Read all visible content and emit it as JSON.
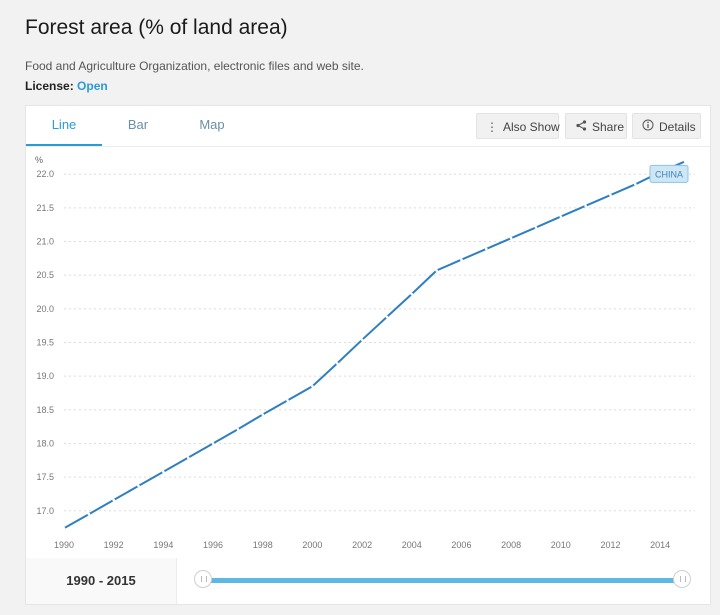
{
  "header": {
    "title": "Forest area (% of land area)",
    "source": "Food and Agriculture Organization, electronic files and web site.",
    "license_label": "License:",
    "license_value": "Open"
  },
  "tabs": [
    {
      "label": "Line",
      "active": true
    },
    {
      "label": "Bar",
      "active": false
    },
    {
      "label": "Map",
      "active": false
    }
  ],
  "toolbar": {
    "also_show": "Also Show",
    "share": "Share",
    "details": "Details"
  },
  "footer": {
    "range_label": "1990 - 2015",
    "range_start": 1990,
    "range_end": 2015
  },
  "colors": {
    "accent": "#2b9bd6",
    "line": "#2f7fc1",
    "series_label_bg": "#cfe6f5"
  },
  "chart_data": {
    "type": "line",
    "ylabel": "%",
    "xlabel": "",
    "xlim": [
      1990,
      2015
    ],
    "ylim": [
      16.7,
      22.3
    ],
    "x_ticks": [
      1990,
      1992,
      1994,
      1996,
      1998,
      2000,
      2002,
      2004,
      2006,
      2008,
      2010,
      2012,
      2014
    ],
    "x_tick_labels": [
      "1990",
      "1992",
      "1994",
      "1996",
      "1998",
      "2000",
      "2002",
      "2004",
      "2006",
      "2008",
      "2010",
      "2012",
      "2014"
    ],
    "y_ticks": [
      17.0,
      17.5,
      18.0,
      18.5,
      19.0,
      19.5,
      20.0,
      20.5,
      21.0,
      21.5,
      22.0
    ],
    "y_tick_labels": [
      "17.0",
      "17.5",
      "18.0",
      "18.5",
      "19.0",
      "19.5",
      "20.0",
      "20.5",
      "21.0",
      "21.5",
      "22.0"
    ],
    "grid": true,
    "x": [
      1990,
      1991,
      1992,
      1993,
      1994,
      1995,
      1996,
      1997,
      1998,
      1999,
      2000,
      2001,
      2002,
      2003,
      2004,
      2005,
      2006,
      2007,
      2008,
      2009,
      2010,
      2011,
      2012,
      2013,
      2014,
      2015
    ],
    "series": [
      {
        "name": "CHINA",
        "values": [
          16.74,
          16.95,
          17.16,
          17.37,
          17.58,
          17.79,
          18.0,
          18.21,
          18.43,
          18.64,
          18.85,
          19.19,
          19.54,
          19.88,
          20.22,
          20.57,
          20.73,
          20.89,
          21.05,
          21.21,
          21.37,
          21.53,
          21.69,
          21.85,
          22.03,
          22.19
        ]
      }
    ]
  }
}
